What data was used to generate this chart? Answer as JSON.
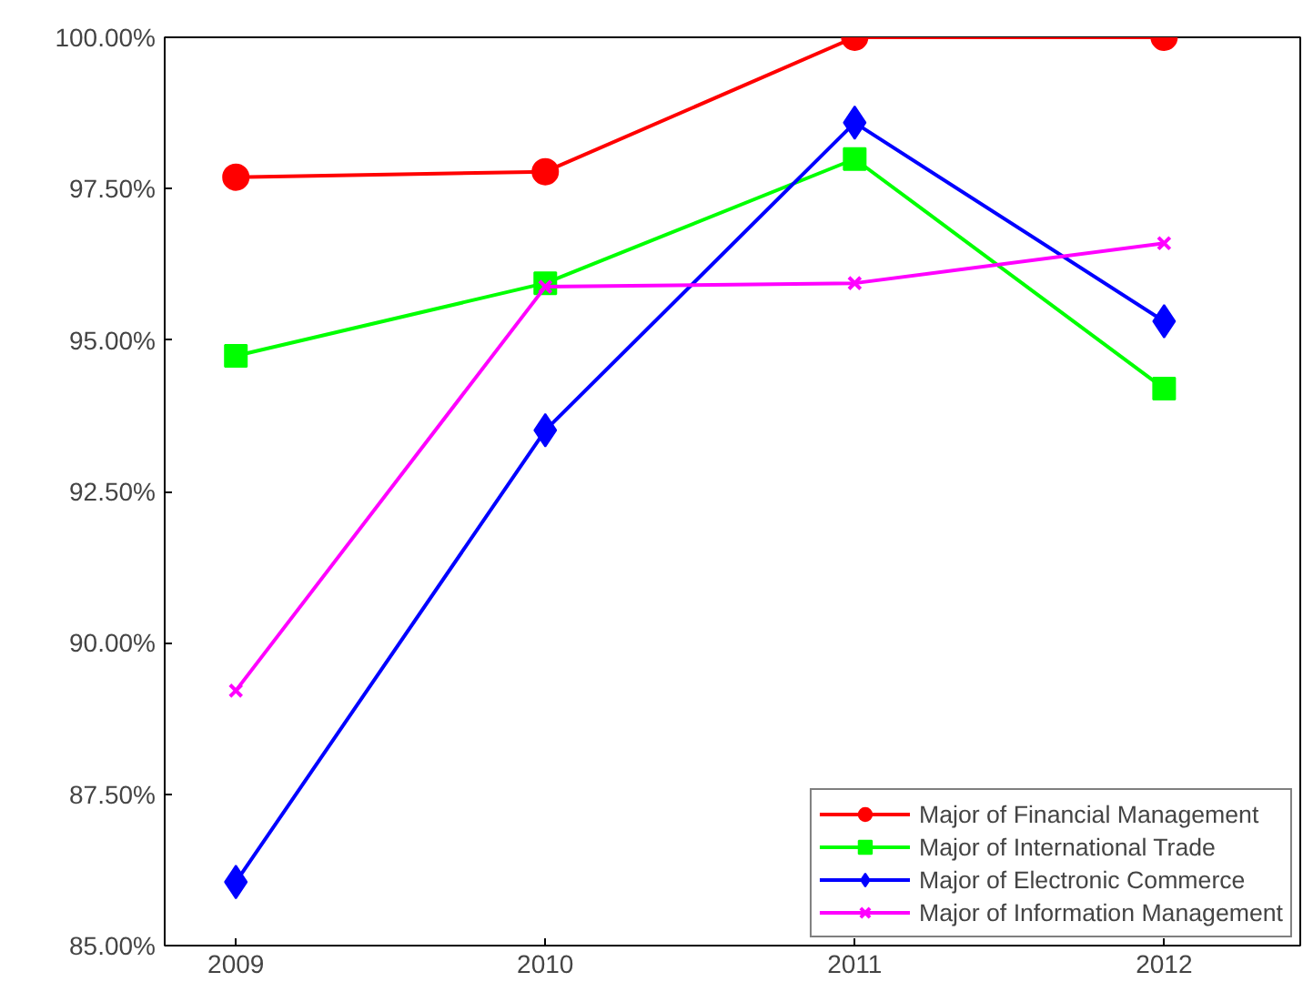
{
  "chart_data": {
    "type": "line",
    "x": [
      2009,
      2010,
      2011,
      2012
    ],
    "xlim": [
      2008.77,
      2012.44
    ],
    "xticks": [
      2009,
      2010,
      2011,
      2012
    ],
    "ylim": [
      85,
      100
    ],
    "yticks": [
      {
        "value": 85,
        "label": "85.00%"
      },
      {
        "value": 87.5,
        "label": "87.50%"
      },
      {
        "value": 90,
        "label": "90.00%"
      },
      {
        "value": 92.5,
        "label": "92.50%"
      },
      {
        "value": 95,
        "label": "95.00%"
      },
      {
        "value": 97.5,
        "label": "97.50%"
      },
      {
        "value": 100,
        "label": "100.00%"
      }
    ],
    "grid": false,
    "legend": "bottom right",
    "line_style": "solid",
    "series": [
      {
        "name": "Major of Financial Management",
        "color": "#ff0000",
        "marker": "circle",
        "values": [
          97.69,
          97.78,
          100,
          100
        ]
      },
      {
        "name": "Major of International Trade",
        "color": "#00ff00",
        "marker": "square",
        "values": [
          94.74,
          95.94,
          97.99,
          94.2
        ]
      },
      {
        "name": "Major of Electronic Commerce",
        "color": "#0000ff",
        "marker": "diamond",
        "values": [
          86.05,
          93.51,
          98.59,
          95.31
        ]
      },
      {
        "name": "Major of Information Management",
        "color": "#ff00ff",
        "marker": "cross",
        "values": [
          89.21,
          95.88,
          95.94,
          96.6
        ]
      }
    ]
  }
}
